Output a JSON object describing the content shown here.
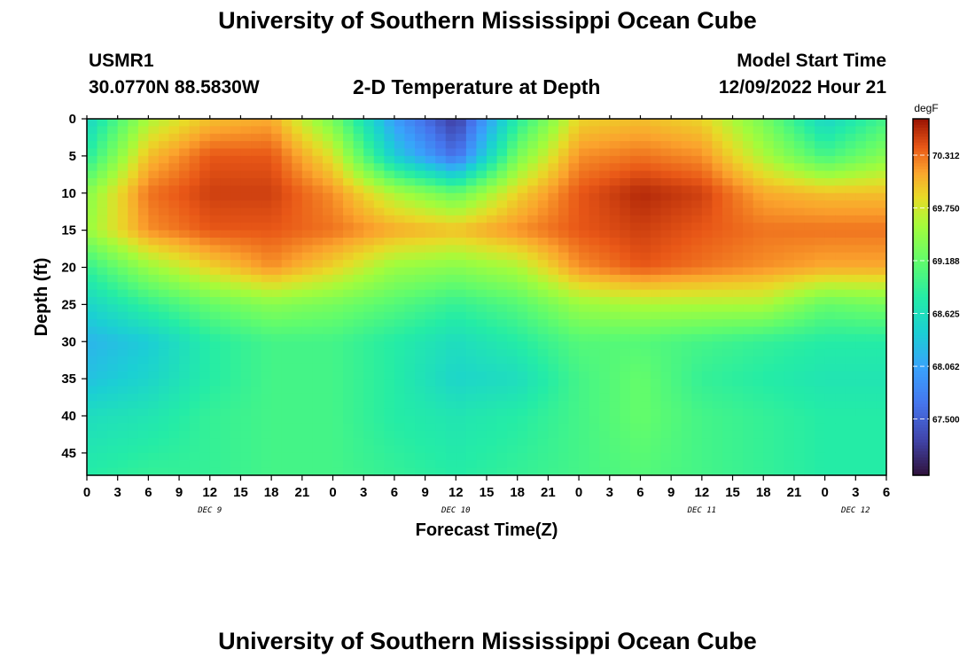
{
  "title_top": "University of Southern Mississippi Ocean Cube",
  "title_bottom": "University of Southern Mississippi Ocean Cube",
  "station": {
    "id": "USMR1",
    "coords": "30.0770N  88.5830W"
  },
  "model": {
    "label": "Model Start Time",
    "time": "12/09/2022 Hour 21"
  },
  "chart_data": {
    "type": "heatmap",
    "title": "2-D Temperature at Depth",
    "xlabel": "Forecast Time(Z)",
    "ylabel": "Depth (ft)",
    "x_range_hours": [
      0,
      78
    ],
    "y_range_ft": [
      0,
      48
    ],
    "x_tick_labels": [
      "0",
      "3",
      "6",
      "9",
      "12",
      "15",
      "18",
      "21",
      "0",
      "3",
      "6",
      "9",
      "12",
      "15",
      "18",
      "21",
      "0",
      "3",
      "6",
      "9",
      "12",
      "15",
      "18",
      "21",
      "0",
      "3",
      "6"
    ],
    "y_ticks": [
      "0",
      "5",
      "10",
      "15",
      "20",
      "25",
      "30",
      "35",
      "40",
      "45"
    ],
    "date_labels": [
      {
        "label": "DEC 9",
        "hour": 12
      },
      {
        "label": "DEC 10",
        "hour": 36
      },
      {
        "label": "DEC 11",
        "hour": 60
      },
      {
        "label": "DEC 12",
        "hour": 75
      }
    ],
    "colorbar": {
      "units": "degF",
      "ticks": [
        "70.312",
        "69.750",
        "69.188",
        "68.625",
        "68.062",
        "67.500"
      ],
      "tick_values": [
        70.312,
        69.75,
        69.188,
        68.625,
        68.062,
        67.5
      ],
      "range": [
        66.9,
        70.7
      ]
    },
    "depth_levels_ft": [
      0,
      5,
      10,
      15,
      20,
      25,
      30,
      35,
      40,
      48
    ],
    "time_hours": [
      0,
      6,
      12,
      18,
      24,
      30,
      36,
      42,
      48,
      54,
      60,
      66,
      72,
      78
    ],
    "temperature_degF": [
      [
        68.5,
        69.6,
        70.0,
        70.1,
        69.3,
        68.0,
        67.2,
        68.8,
        69.9,
        70.0,
        69.9,
        69.3,
        68.5,
        69.0
      ],
      [
        68.8,
        70.0,
        70.4,
        70.4,
        69.8,
        68.4,
        67.6,
        69.3,
        70.2,
        70.3,
        70.2,
        69.6,
        69.0,
        69.4
      ],
      [
        69.4,
        70.3,
        70.5,
        70.5,
        70.2,
        69.6,
        69.2,
        69.9,
        70.4,
        70.6,
        70.5,
        70.1,
        70.0,
        70.0
      ],
      [
        69.5,
        70.2,
        70.4,
        70.4,
        70.3,
        70.1,
        70.0,
        70.2,
        70.4,
        70.5,
        70.4,
        70.3,
        70.3,
        70.3
      ],
      [
        68.9,
        69.5,
        69.9,
        70.2,
        69.9,
        69.5,
        69.4,
        69.6,
        70.2,
        70.4,
        70.3,
        70.2,
        70.1,
        70.1
      ],
      [
        68.5,
        68.9,
        69.2,
        69.4,
        69.3,
        69.1,
        68.9,
        69.1,
        69.5,
        69.6,
        69.6,
        69.6,
        69.2,
        69.3
      ],
      [
        68.2,
        68.4,
        68.8,
        69.0,
        69.0,
        68.8,
        68.6,
        68.8,
        69.1,
        69.1,
        69.0,
        68.9,
        68.8,
        68.8
      ],
      [
        68.3,
        68.5,
        68.8,
        69.0,
        69.0,
        68.8,
        68.5,
        68.6,
        69.0,
        69.2,
        68.9,
        68.8,
        68.7,
        68.7
      ],
      [
        68.6,
        68.7,
        68.9,
        69.0,
        69.0,
        68.8,
        68.7,
        68.8,
        69.0,
        69.2,
        69.0,
        68.9,
        68.8,
        68.8
      ],
      [
        68.8,
        68.9,
        68.9,
        69.0,
        69.0,
        68.9,
        68.8,
        68.9,
        69.0,
        69.1,
        69.0,
        68.9,
        68.8,
        68.8
      ]
    ]
  }
}
